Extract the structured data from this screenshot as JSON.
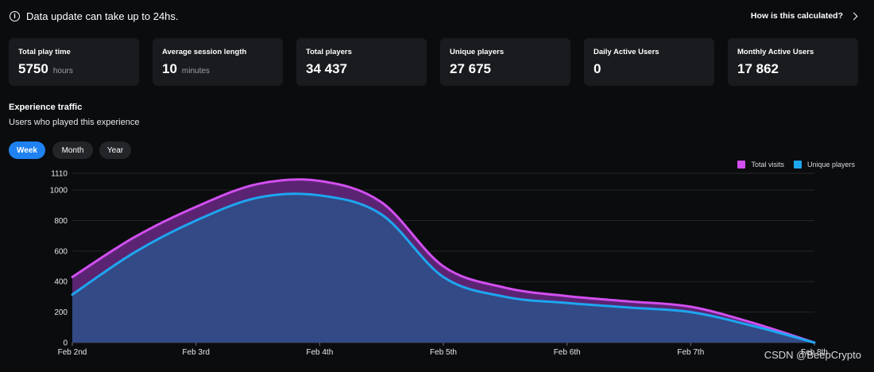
{
  "notice": {
    "text": "Data update can take up to 24hs.",
    "icon": "info-icon"
  },
  "header": {
    "calc_link": "How is this calculated?"
  },
  "stats": [
    {
      "label": "Total play time",
      "value": "5750",
      "unit": "hours"
    },
    {
      "label": "Average session length",
      "value": "10",
      "unit": "minutes"
    },
    {
      "label": "Total players",
      "value": "34 437",
      "unit": ""
    },
    {
      "label": "Unique players",
      "value": "27 675",
      "unit": ""
    },
    {
      "label": "Daily Active Users",
      "value": "0",
      "unit": ""
    },
    {
      "label": "Monthly Active Users",
      "value": "17 862",
      "unit": ""
    }
  ],
  "section": {
    "title": "Experience traffic",
    "subtitle": "Users who played this experience"
  },
  "range_tabs": {
    "week": "Week",
    "month": "Month",
    "year": "Year",
    "selected": "Week"
  },
  "colors": {
    "total_visits": "#d24ff0",
    "unique_players": "#1ea6f0",
    "accent": "#1f82f2"
  },
  "chart_data": {
    "type": "area",
    "title": "Experience traffic",
    "categories": [
      "Feb 2nd",
      "Feb 3rd",
      "Feb 4th",
      "Feb 5th",
      "Feb 6th",
      "Feb 7th",
      "Feb 8th"
    ],
    "x": [
      0,
      0.5,
      1,
      1.5,
      2,
      2.5,
      3,
      3.5,
      4,
      4.5,
      5,
      5.5,
      6
    ],
    "series": [
      {
        "name": "Total visits",
        "values": [
          430,
          690,
          890,
          1040,
          1060,
          920,
          500,
          360,
          305,
          270,
          235,
          130,
          0
        ]
      },
      {
        "name": "Unique players",
        "values": [
          315,
          590,
          800,
          950,
          965,
          840,
          430,
          300,
          260,
          230,
          200,
          110,
          0
        ]
      }
    ],
    "yticks": [
      0,
      200,
      400,
      600,
      800,
      1000,
      1110
    ],
    "ylim": [
      0,
      1110
    ],
    "legend_position": "top-right",
    "grid": true
  },
  "watermark": "CSDN @BeepCrypto"
}
